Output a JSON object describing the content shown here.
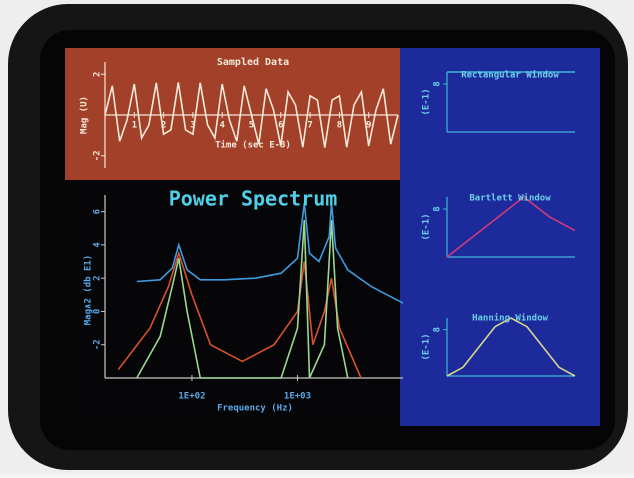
{
  "chart_data": [
    {
      "type": "line",
      "title": "Sampled Data",
      "x_label": "Time (sec E-3)",
      "y_label": "Mag (U)",
      "xlim": [
        0,
        10
      ],
      "ylim": [
        -2.6,
        2.6
      ],
      "xticks": [
        1,
        2,
        3,
        4,
        5,
        6,
        7,
        8,
        9
      ],
      "yticks": [
        -2,
        2
      ],
      "x": [
        0,
        0.25,
        0.5,
        0.75,
        1,
        1.25,
        1.5,
        1.75,
        2,
        2.25,
        2.5,
        2.75,
        3,
        3.25,
        3.5,
        3.75,
        4,
        4.25,
        4.5,
        4.75,
        5,
        5.25,
        5.5,
        5.75,
        6,
        6.25,
        6.5,
        6.75,
        7,
        7.25,
        7.5,
        7.75,
        8,
        8.25,
        8.5,
        8.75,
        9,
        9.25,
        9.5,
        9.75,
        10
      ],
      "series": [
        {
          "color": "#f4ead8",
          "values": [
            0,
            1.43,
            -1.29,
            -0.25,
            1.52,
            -1.13,
            -0.49,
            1.58,
            -0.94,
            -0.73,
            1.6,
            -0.73,
            -0.94,
            1.58,
            -0.49,
            -1.13,
            1.52,
            -0.25,
            -1.29,
            1.43,
            0,
            -1.43,
            1.29,
            0.25,
            -1.52,
            1.13,
            0.49,
            -1.58,
            0.94,
            0.73,
            -1.6,
            0.73,
            0.94,
            -1.58,
            0.49,
            1.13,
            -1.52,
            0.25,
            1.29,
            -1.43,
            0
          ]
        }
      ]
    },
    {
      "type": "line",
      "title": "Power Spectrum",
      "x_label": "Frequency (Hz)",
      "y_label": "Mag∧2 (db E1)",
      "xscale": "log",
      "xlim": [
        15,
        10000
      ],
      "ylim": [
        -4,
        7
      ],
      "xticks": [
        {
          "value": 100,
          "label": "1E+02"
        },
        {
          "value": 1000,
          "label": "1E+03"
        }
      ],
      "yticks": [
        -2,
        0,
        2,
        4,
        6
      ],
      "series": [
        {
          "color": "#d8512e",
          "x": [
            20,
            40,
            60,
            75,
            100,
            150,
            300,
            600,
            1000,
            1160,
            1400,
            1800,
            2100,
            2500,
            4000
          ],
          "values": [
            -3.5,
            -1,
            1.5,
            3.5,
            1,
            -2,
            -3,
            -2,
            0,
            3,
            -2,
            0,
            2,
            -1,
            -4
          ]
        },
        {
          "color": "#9bd88f",
          "x": [
            30,
            50,
            65,
            75,
            90,
            120,
            700,
            1000,
            1160,
            1300,
            1800,
            2100,
            2400,
            3000
          ],
          "values": [
            -4,
            -1.5,
            1.5,
            3.2,
            0,
            -4,
            -4,
            -1,
            5.5,
            -4,
            -2,
            5.5,
            -1,
            -4
          ]
        },
        {
          "color": "#3f9be0",
          "x": [
            30,
            50,
            65,
            75,
            90,
            120,
            200,
            400,
            700,
            1000,
            1160,
            1300,
            1600,
            2000,
            2100,
            2300,
            3000,
            5000,
            10000
          ],
          "values": [
            1.8,
            1.9,
            2.6,
            4.0,
            2.5,
            1.9,
            1.9,
            2.0,
            2.3,
            3.2,
            6.5,
            3.5,
            3.0,
            4.5,
            6.5,
            3.8,
            2.5,
            1.5,
            0.5
          ]
        }
      ]
    },
    {
      "type": "line",
      "title": "Rectangular Window",
      "y_label": "(E-1)",
      "xlim": [
        0,
        1
      ],
      "ylim": [
        0,
        10
      ],
      "yticks": [
        8
      ],
      "x": [
        0,
        1
      ],
      "series": [
        {
          "color": "#3fb7d8",
          "values": [
            10,
            10
          ]
        }
      ]
    },
    {
      "type": "line",
      "title": "Bartlett Window",
      "y_label": "(E-1)",
      "xlim": [
        0,
        1
      ],
      "ylim": [
        0,
        10
      ],
      "yticks": [
        8
      ],
      "x": [
        0,
        0.3,
        0.6,
        0.8,
        1
      ],
      "series": [
        {
          "color": "#d03a7a",
          "values": [
            0,
            5,
            10,
            6.7,
            4.4
          ]
        }
      ]
    },
    {
      "type": "line",
      "title": "Hanning Window",
      "y_label": "(E-1)",
      "xlim": [
        0,
        1
      ],
      "ylim": [
        0,
        10
      ],
      "yticks": [
        8
      ],
      "x": [
        0,
        0.125,
        0.25,
        0.375,
        0.5,
        0.625,
        0.75,
        0.875,
        1
      ],
      "series": [
        {
          "color": "#d6d98a",
          "values": [
            0,
            1.5,
            5,
            8.5,
            10,
            8.5,
            5,
            1.5,
            0
          ]
        }
      ]
    }
  ]
}
